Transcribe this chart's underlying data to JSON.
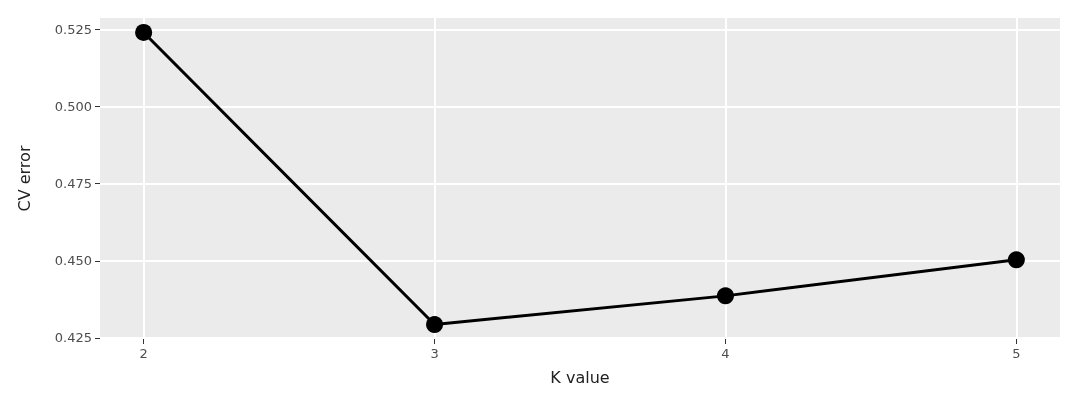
{
  "chart_data": {
    "type": "line",
    "xlabel": "K value",
    "ylabel": "CV error",
    "x": [
      2,
      3,
      4,
      5
    ],
    "series": [
      {
        "color": "#000000",
        "values": [
          0.5241,
          0.4293,
          0.4386,
          0.4503
        ]
      }
    ],
    "xlim": [
      1.85,
      5.15
    ],
    "xticks": [
      2,
      3,
      4,
      5
    ],
    "ylim": [
      0.4246,
      0.5288
    ],
    "yticks": [
      0.425,
      {
        "value": 0.45,
        "label": "0.450"
      },
      0.475,
      {
        "value": 0.5,
        "label": "0.500"
      },
      0.525
    ],
    "grid": true,
    "marker": "circle",
    "line_style": "solid"
  }
}
